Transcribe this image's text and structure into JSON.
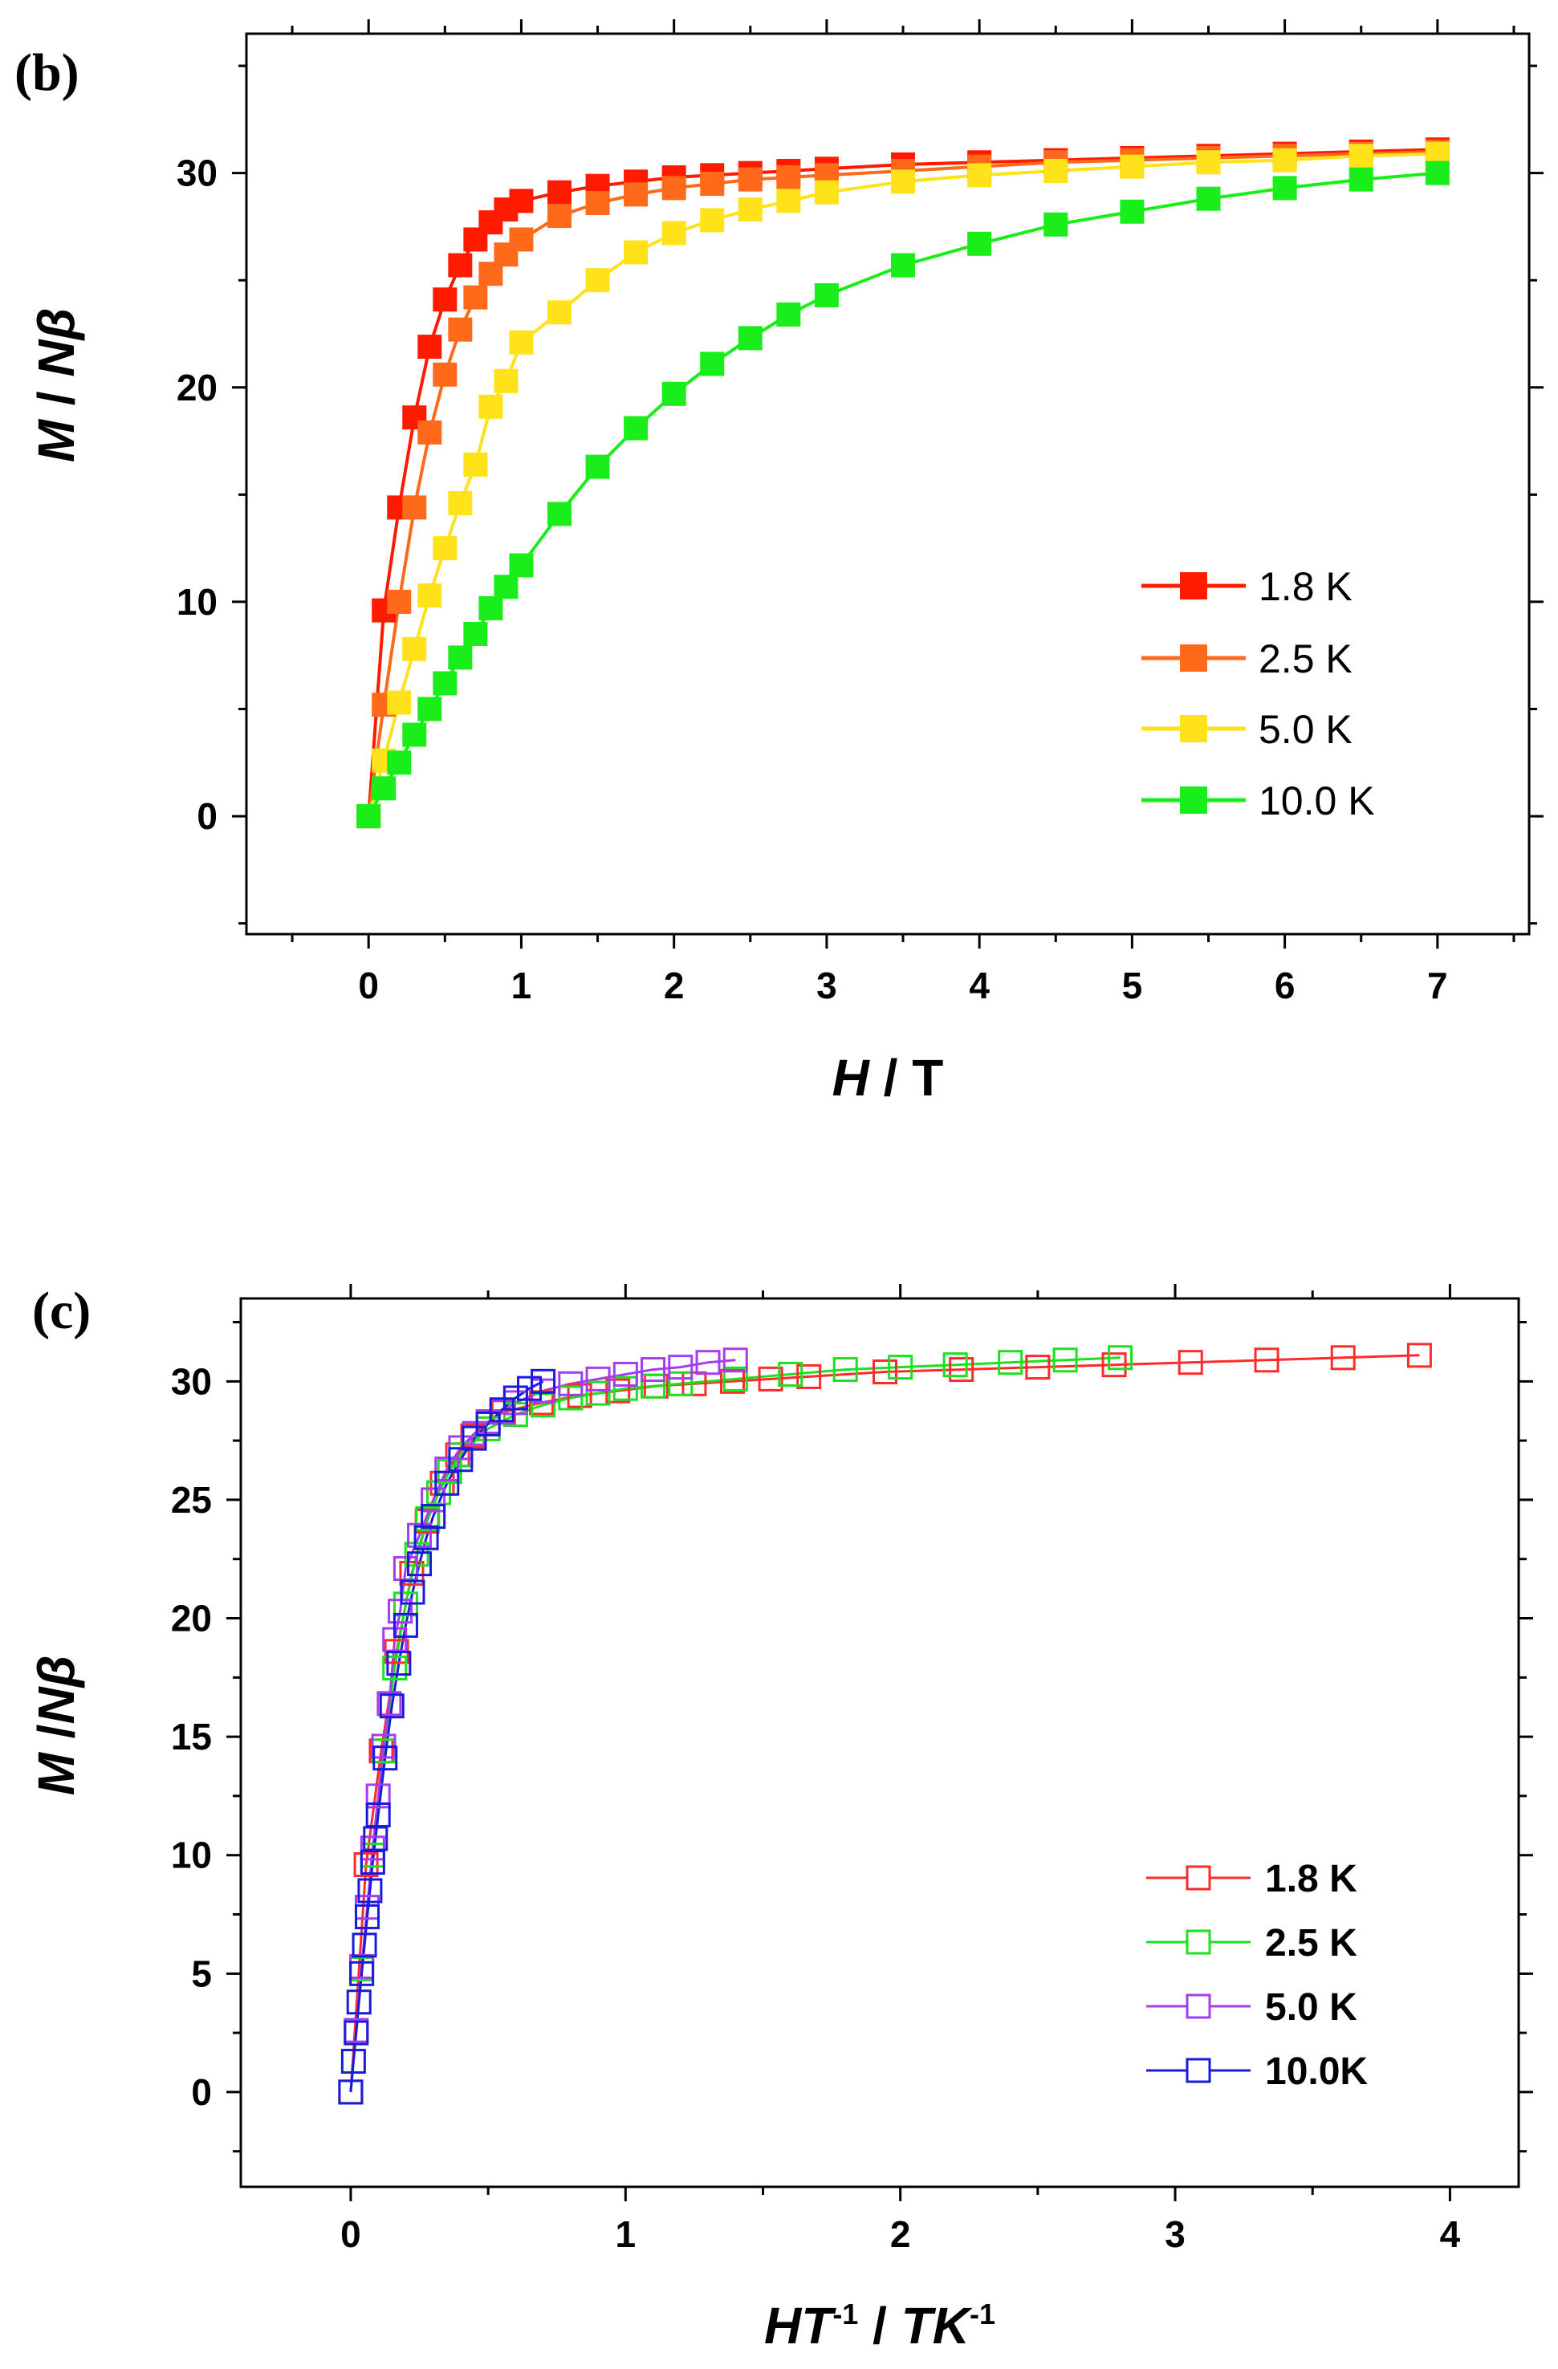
{
  "chart_data": [
    {
      "panel": "(b)",
      "type": "line",
      "marker": "filled-square",
      "xlabel_italic": "H",
      "xlabel_rest": " / T",
      "ylabel_italic_1": "M",
      "ylabel_mid": " / ",
      "ylabel_italic_2": "N",
      "ylabel_beta": "β",
      "xlim": [
        -0.8,
        7.6
      ],
      "ylim": [
        -5.5,
        36.5
      ],
      "xticks": [
        0,
        1,
        2,
        3,
        4,
        5,
        6,
        7
      ],
      "yticks": [
        0,
        10,
        20,
        30
      ],
      "legend_position": "center-right",
      "series": [
        {
          "name": "1.8 K",
          "color": "#ff1a00",
          "x": [
            0,
            0.1,
            0.2,
            0.3,
            0.4,
            0.5,
            0.6,
            0.7,
            0.8,
            0.9,
            1.0,
            1.25,
            1.5,
            1.75,
            2.0,
            2.25,
            2.5,
            2.75,
            3.0,
            3.5,
            4.0,
            4.5,
            5.0,
            5.5,
            6.0,
            6.5,
            7.0
          ],
          "y": [
            0,
            9.6,
            14.4,
            18.6,
            21.9,
            24.1,
            25.7,
            26.9,
            27.7,
            28.3,
            28.7,
            29.1,
            29.4,
            29.6,
            29.8,
            29.9,
            30.0,
            30.1,
            30.2,
            30.4,
            30.5,
            30.6,
            30.7,
            30.8,
            30.9,
            31.0,
            31.1
          ]
        },
        {
          "name": "2.5 K",
          "color": "#ff6a1a",
          "x": [
            0,
            0.1,
            0.2,
            0.3,
            0.4,
            0.5,
            0.6,
            0.7,
            0.8,
            0.9,
            1.0,
            1.25,
            1.5,
            1.75,
            2.0,
            2.25,
            2.5,
            2.75,
            3.0,
            3.5,
            4.0,
            4.5,
            5.0,
            5.5,
            6.0,
            6.5,
            7.0
          ],
          "y": [
            0,
            5.2,
            10.0,
            14.4,
            17.9,
            20.6,
            22.7,
            24.2,
            25.3,
            26.2,
            26.9,
            28.0,
            28.6,
            29.0,
            29.3,
            29.5,
            29.7,
            29.8,
            29.9,
            30.1,
            30.3,
            30.5,
            30.6,
            30.7,
            30.8,
            30.9,
            31.0
          ]
        },
        {
          "name": "5.0 K",
          "color": "#ffe21a",
          "x": [
            0,
            0.1,
            0.2,
            0.3,
            0.4,
            0.5,
            0.6,
            0.7,
            0.8,
            0.9,
            1.0,
            1.25,
            1.5,
            1.75,
            2.0,
            2.25,
            2.5,
            2.75,
            3.0,
            3.5,
            4.0,
            4.5,
            5.0,
            5.5,
            6.0,
            6.5,
            7.0
          ],
          "y": [
            0,
            2.6,
            5.3,
            7.8,
            10.3,
            12.5,
            14.6,
            16.4,
            19.1,
            20.3,
            22.1,
            23.5,
            25.0,
            26.3,
            27.2,
            27.8,
            28.3,
            28.7,
            29.1,
            29.6,
            29.9,
            30.1,
            30.3,
            30.5,
            30.6,
            30.8,
            30.9
          ]
        },
        {
          "name": "10.0 K",
          "color": "#1aee1a",
          "x": [
            0,
            0.1,
            0.2,
            0.3,
            0.4,
            0.5,
            0.6,
            0.7,
            0.8,
            0.9,
            1.0,
            1.25,
            1.5,
            1.75,
            2.0,
            2.25,
            2.5,
            2.75,
            3.0,
            3.5,
            4.0,
            4.5,
            5.0,
            5.5,
            6.0,
            6.5,
            7.0
          ],
          "y": [
            0,
            1.3,
            2.5,
            3.8,
            5.0,
            6.2,
            7.4,
            8.5,
            9.7,
            10.7,
            11.7,
            14.1,
            16.3,
            18.1,
            19.7,
            21.1,
            22.3,
            23.4,
            24.3,
            25.7,
            26.7,
            27.6,
            28.2,
            28.8,
            29.3,
            29.7,
            30.0
          ]
        }
      ]
    },
    {
      "panel": "(c)",
      "type": "line",
      "marker": "open-square",
      "xlabel_italic_1": "HT",
      "xlabel_sup_1": "-1",
      "xlabel_mid": " / ",
      "xlabel_italic_2": "TK",
      "xlabel_sup_2": "-1",
      "ylabel_italic_1": "M",
      "ylabel_mid": " /",
      "ylabel_italic_2": "N",
      "ylabel_beta": "β",
      "xlim": [
        -0.4,
        4.25
      ],
      "ylim": [
        -4,
        33.5
      ],
      "xticks": [
        0,
        1,
        2,
        3,
        4
      ],
      "yticks": [
        0,
        5,
        10,
        15,
        20,
        25,
        30
      ],
      "legend_position": "bottom-right",
      "series": [
        {
          "name": "1.8 K",
          "color": "#ff2a2a",
          "x": [
            0,
            0.056,
            0.111,
            0.167,
            0.222,
            0.278,
            0.333,
            0.389,
            0.444,
            0.5,
            0.556,
            0.694,
            0.833,
            0.972,
            1.111,
            1.25,
            1.389,
            1.528,
            1.667,
            1.944,
            2.222,
            2.5,
            2.778,
            3.056,
            3.333,
            3.611,
            3.889
          ],
          "y": [
            0,
            9.6,
            14.4,
            18.6,
            21.9,
            24.1,
            25.7,
            26.9,
            27.7,
            28.3,
            28.7,
            29.1,
            29.4,
            29.6,
            29.8,
            29.9,
            30.0,
            30.1,
            30.2,
            30.4,
            30.5,
            30.6,
            30.7,
            30.8,
            30.9,
            31.0,
            31.1
          ]
        },
        {
          "name": "2.5 K",
          "color": "#1ee01e",
          "x": [
            0,
            0.04,
            0.08,
            0.12,
            0.16,
            0.2,
            0.24,
            0.28,
            0.32,
            0.36,
            0.4,
            0.5,
            0.6,
            0.7,
            0.8,
            0.9,
            1.0,
            1.1,
            1.2,
            1.4,
            1.6,
            1.8,
            2.0,
            2.2,
            2.4,
            2.6,
            2.8
          ],
          "y": [
            0,
            5.2,
            10.0,
            14.4,
            17.9,
            20.6,
            22.7,
            24.2,
            25.3,
            26.2,
            26.9,
            28.0,
            28.6,
            29.0,
            29.3,
            29.5,
            29.7,
            29.8,
            29.9,
            30.1,
            30.3,
            30.5,
            30.6,
            30.7,
            30.8,
            30.9,
            31.0
          ]
        },
        {
          "name": "5.0 K",
          "color": "#a63cf0",
          "x": [
            0,
            0.02,
            0.04,
            0.06,
            0.08,
            0.1,
            0.12,
            0.14,
            0.16,
            0.18,
            0.2,
            0.25,
            0.3,
            0.35,
            0.4,
            0.45,
            0.5,
            0.55,
            0.6,
            0.7,
            0.8,
            0.9,
            1.0,
            1.1,
            1.2,
            1.3,
            1.4
          ],
          "y": [
            0,
            2.6,
            5.3,
            7.8,
            10.3,
            12.5,
            14.6,
            16.4,
            19.1,
            20.3,
            22.1,
            23.5,
            25.0,
            26.3,
            27.2,
            27.8,
            28.3,
            28.7,
            29.1,
            29.6,
            29.9,
            30.1,
            30.3,
            30.5,
            30.6,
            30.8,
            30.9
          ]
        },
        {
          "name": "10.0K",
          "color": "#1a1adc",
          "x": [
            0,
            0.01,
            0.02,
            0.03,
            0.04,
            0.05,
            0.06,
            0.07,
            0.08,
            0.09,
            0.1,
            0.125,
            0.15,
            0.175,
            0.2,
            0.225,
            0.25,
            0.275,
            0.3,
            0.35,
            0.4,
            0.45,
            0.5,
            0.55,
            0.6,
            0.65,
            0.7
          ],
          "y": [
            0,
            1.3,
            2.5,
            3.8,
            5.0,
            6.2,
            7.4,
            8.5,
            9.7,
            10.7,
            11.7,
            14.1,
            16.3,
            18.1,
            19.7,
            21.1,
            22.3,
            23.4,
            24.3,
            25.7,
            26.7,
            27.6,
            28.2,
            28.8,
            29.3,
            29.7,
            30.0
          ]
        }
      ]
    }
  ]
}
